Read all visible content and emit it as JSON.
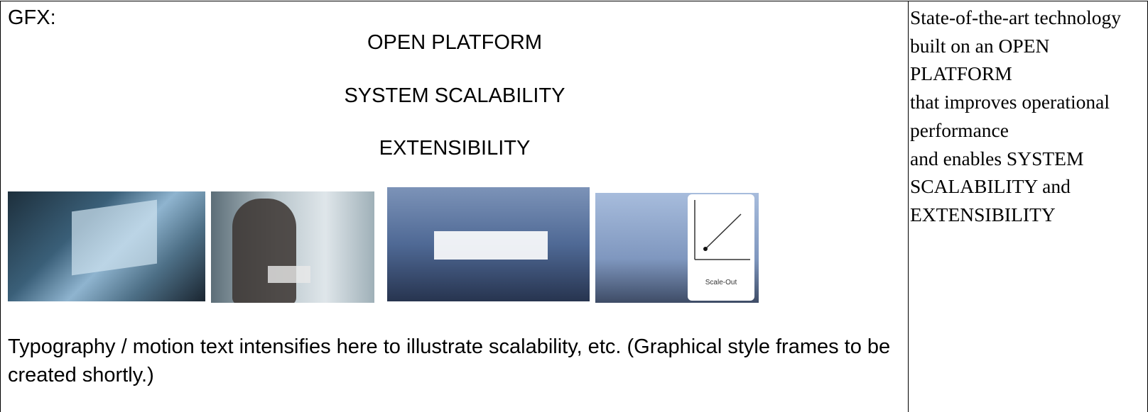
{
  "left_cell": {
    "label": "GFX:",
    "headings": [
      "OPEN PLATFORM",
      "SYSTEM SCALABILITY",
      "EXTENSIBILITY"
    ],
    "caption": "Typography / motion text intensifies here to illustrate scalability, etc. (Graphical style frames to be created shortly.)",
    "image_card_label": "Scale-Out"
  },
  "right_cell": {
    "paragraphs": [
      "State-of-the-art technology built on an OPEN PLATFORM",
      "that improves operational performance",
      "and enables SYSTEM SCALABILITY and EXTENSIBILITY"
    ]
  }
}
